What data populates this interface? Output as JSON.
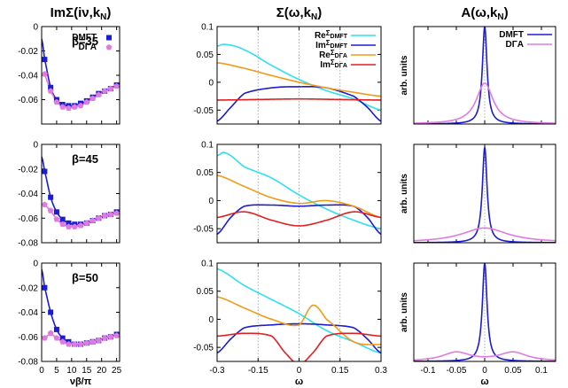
{
  "figure": {
    "col_titles": [
      "ImΣ(iν,kN)",
      "Σ(ω,kN)",
      "A(ω,kN)"
    ],
    "xlabels": [
      "νβ/π",
      "ω",
      "ω"
    ],
    "ylabel_right": "arb. units"
  },
  "chart_data": [
    {
      "panel": "row1-col1",
      "type": "line",
      "annotation": "β=35",
      "xlim": [
        0,
        26
      ],
      "ylim": [
        -0.08,
        0
      ],
      "xticks": [
        0,
        5,
        10,
        15,
        20,
        25
      ],
      "show_xticks": false,
      "yticks": [
        0,
        -0.02,
        -0.04,
        -0.06,
        -0.08
      ],
      "ytick_labels": [
        "0",
        "-0.02",
        "-0.04",
        "-0.06",
        ""
      ],
      "legend": "top-right",
      "series": [
        {
          "name": "DMFT",
          "color": "#1c1cd0",
          "marker": "square",
          "x": [
            1,
            3,
            5,
            7,
            9,
            11,
            13,
            15,
            17,
            19,
            21,
            23,
            25
          ],
          "y": [
            -0.027,
            -0.05,
            -0.06,
            -0.064,
            -0.065,
            -0.065,
            -0.063,
            -0.061,
            -0.058,
            -0.055,
            -0.053,
            -0.051,
            -0.048
          ],
          "curve_x": [
            0,
            1,
            3,
            5,
            7,
            9,
            11,
            13,
            15,
            17,
            19,
            21,
            23,
            25,
            26
          ],
          "curve_y": [
            -0.01,
            -0.027,
            -0.05,
            -0.06,
            -0.064,
            -0.065,
            -0.065,
            -0.063,
            -0.061,
            -0.058,
            -0.055,
            -0.053,
            -0.051,
            -0.048,
            -0.047
          ]
        },
        {
          "name": "DΓA",
          "color": "#e07ae0",
          "marker": "pentagon",
          "x": [
            1,
            3,
            5,
            7,
            9,
            11,
            13,
            15,
            17,
            19,
            21,
            23,
            25
          ],
          "y": [
            -0.039,
            -0.053,
            -0.062,
            -0.066,
            -0.067,
            -0.066,
            -0.065,
            -0.062,
            -0.059,
            -0.056,
            -0.053,
            -0.051,
            -0.049
          ]
        }
      ]
    },
    {
      "panel": "row2-col1",
      "type": "line",
      "annotation": "β=45",
      "xlim": [
        0,
        26
      ],
      "ylim": [
        -0.08,
        0
      ],
      "xticks": [
        0,
        5,
        10,
        15,
        20,
        25
      ],
      "show_xticks": false,
      "yticks": [
        0,
        -0.02,
        -0.04,
        -0.06,
        -0.08
      ],
      "ytick_labels": [
        "0",
        "-0.02",
        "-0.04",
        "-0.06",
        "-0.08"
      ],
      "series": [
        {
          "name": "DMFT",
          "color": "#1c1cd0",
          "marker": "square",
          "x": [
            1,
            3,
            5,
            7,
            9,
            11,
            13,
            15,
            17,
            19,
            21,
            23,
            25
          ],
          "y": [
            -0.022,
            -0.043,
            -0.055,
            -0.061,
            -0.064,
            -0.065,
            -0.065,
            -0.064,
            -0.062,
            -0.06,
            -0.058,
            -0.057,
            -0.055
          ],
          "curve_x": [
            0,
            1,
            3,
            5,
            7,
            9,
            11,
            13,
            15,
            17,
            19,
            21,
            23,
            25,
            26
          ],
          "curve_y": [
            -0.01,
            -0.022,
            -0.043,
            -0.055,
            -0.061,
            -0.064,
            -0.065,
            -0.065,
            -0.064,
            -0.062,
            -0.06,
            -0.058,
            -0.057,
            -0.055,
            -0.054
          ]
        },
        {
          "name": "DΓA",
          "color": "#e07ae0",
          "marker": "pentagon",
          "x": [
            1,
            3,
            5,
            7,
            9,
            11,
            13,
            15,
            17,
            19,
            21,
            23,
            25
          ],
          "y": [
            -0.049,
            -0.054,
            -0.061,
            -0.065,
            -0.067,
            -0.067,
            -0.066,
            -0.064,
            -0.062,
            -0.06,
            -0.058,
            -0.057,
            -0.056
          ]
        }
      ]
    },
    {
      "panel": "row3-col1",
      "type": "line",
      "annotation": "β=50",
      "xlim": [
        0,
        26
      ],
      "ylim": [
        -0.08,
        0
      ],
      "xticks": [
        0,
        5,
        10,
        15,
        20,
        25
      ],
      "show_xticks": true,
      "yticks": [
        0,
        -0.02,
        -0.04,
        -0.06,
        -0.08
      ],
      "ytick_labels": [
        "0",
        "-0.02",
        "-0.04",
        "-0.06",
        "-0.08"
      ],
      "series": [
        {
          "name": "DMFT",
          "color": "#1c1cd0",
          "marker": "square",
          "x": [
            1,
            3,
            5,
            7,
            9,
            11,
            13,
            15,
            17,
            19,
            21,
            23,
            25
          ],
          "y": [
            -0.02,
            -0.04,
            -0.054,
            -0.061,
            -0.064,
            -0.066,
            -0.066,
            -0.065,
            -0.064,
            -0.063,
            -0.061,
            -0.06,
            -0.058
          ],
          "curve_x": [
            0,
            1,
            3,
            5,
            7,
            9,
            11,
            13,
            15,
            17,
            19,
            21,
            23,
            25,
            26
          ],
          "curve_y": [
            -0.005,
            -0.02,
            -0.04,
            -0.054,
            -0.061,
            -0.064,
            -0.066,
            -0.066,
            -0.065,
            -0.064,
            -0.063,
            -0.061,
            -0.06,
            -0.058,
            -0.057
          ]
        },
        {
          "name": "DΓA",
          "color": "#e07ae0",
          "marker": "pentagon",
          "x": [
            1,
            3,
            5,
            7,
            9,
            11,
            13,
            15,
            17,
            19,
            21,
            23,
            25
          ],
          "y": [
            -0.061,
            -0.057,
            -0.061,
            -0.064,
            -0.066,
            -0.066,
            -0.066,
            -0.065,
            -0.064,
            -0.063,
            -0.061,
            -0.06,
            -0.059
          ]
        }
      ]
    },
    {
      "panel": "row1-col2",
      "type": "line",
      "xlim": [
        -0.3,
        0.3
      ],
      "ylim": [
        -0.075,
        0.1
      ],
      "xticks": [
        -0.3,
        -0.15,
        0,
        0.15,
        0.3
      ],
      "show_xticks": false,
      "yticks": [
        0.1,
        0.05,
        0,
        -0.05
      ],
      "ytick_labels": [
        "0.1",
        "0.05",
        "0",
        "-0.05"
      ],
      "grid_x": [
        -0.15,
        0,
        0.15
      ],
      "legend": "top-right",
      "series": [
        {
          "name": "ReΣDMFT",
          "legend_label": [
            "Re",
            "Σ",
            "DMFT"
          ],
          "color": "#2ee0f0",
          "x": [
            -0.3,
            -0.27,
            -0.2,
            -0.1,
            0,
            0.1,
            0.2,
            0.3
          ],
          "y": [
            0.065,
            0.068,
            0.058,
            0.03,
            0.005,
            -0.015,
            -0.03,
            -0.05
          ]
        },
        {
          "name": "ImΣDMFT",
          "legend_label": [
            "Im",
            "Σ",
            "DMFT"
          ],
          "color": "#1c1cd0",
          "x": [
            -0.3,
            -0.25,
            -0.2,
            -0.1,
            0,
            0.1,
            0.2,
            0.25,
            0.3
          ],
          "y": [
            -0.07,
            -0.045,
            -0.02,
            -0.01,
            -0.008,
            -0.01,
            -0.025,
            -0.045,
            -0.07
          ]
        },
        {
          "name": "ReΣDΓA",
          "legend_label": [
            "Re",
            "Σ",
            "DΓA"
          ],
          "color": "#f29a1a",
          "x": [
            -0.3,
            -0.2,
            -0.1,
            0,
            0.1,
            0.2,
            0.3
          ],
          "y": [
            0.035,
            0.025,
            0.012,
            0.0,
            -0.01,
            -0.018,
            -0.025
          ]
        },
        {
          "name": "ImΣDΓA",
          "legend_label": [
            "Im",
            "Σ",
            "DΓA"
          ],
          "color": "#e02020",
          "x": [
            -0.3,
            -0.15,
            0,
            0.15,
            0.3
          ],
          "y": [
            -0.032,
            -0.031,
            -0.03,
            -0.031,
            -0.032
          ]
        }
      ]
    },
    {
      "panel": "row2-col2",
      "type": "line",
      "xlim": [
        -0.3,
        0.3
      ],
      "ylim": [
        -0.075,
        0.1
      ],
      "xticks": [
        -0.3,
        -0.15,
        0,
        0.15,
        0.3
      ],
      "show_xticks": false,
      "yticks": [
        0.1,
        0.05,
        0,
        -0.05
      ],
      "ytick_labels": [
        "0.1",
        "0.05",
        "0",
        "-0.05"
      ],
      "grid_x": [
        -0.15,
        0,
        0.15
      ],
      "series": [
        {
          "name": "ReΣDMFT",
          "color": "#2ee0f0",
          "x": [
            -0.3,
            -0.27,
            -0.2,
            -0.1,
            0,
            0.1,
            0.2,
            0.3
          ],
          "y": [
            0.08,
            0.085,
            0.06,
            0.04,
            0.01,
            -0.015,
            -0.035,
            -0.05
          ]
        },
        {
          "name": "ImΣDMFT",
          "color": "#1c1cd0",
          "x": [
            -0.3,
            -0.25,
            -0.2,
            -0.1,
            0,
            0.1,
            0.2,
            0.25,
            0.3
          ],
          "y": [
            -0.06,
            -0.03,
            -0.01,
            -0.008,
            -0.01,
            -0.008,
            -0.01,
            -0.03,
            -0.06
          ]
        },
        {
          "name": "ReΣDΓA",
          "color": "#f29a1a",
          "x": [
            -0.3,
            -0.2,
            -0.1,
            0,
            0.1,
            0.2,
            0.3
          ],
          "y": [
            0.045,
            0.025,
            0.005,
            -0.005,
            0.0,
            -0.01,
            -0.03
          ]
        },
        {
          "name": "ImΣDΓA",
          "color": "#e02020",
          "x": [
            -0.3,
            -0.2,
            -0.1,
            0,
            0.1,
            0.2,
            0.3
          ],
          "y": [
            -0.03,
            -0.02,
            -0.035,
            -0.045,
            -0.035,
            -0.02,
            -0.03
          ]
        }
      ]
    },
    {
      "panel": "row3-col2",
      "type": "line",
      "xlim": [
        -0.3,
        0.3
      ],
      "ylim": [
        -0.075,
        0.1
      ],
      "xticks": [
        -0.3,
        -0.15,
        0,
        0.15,
        0.3
      ],
      "show_xticks": true,
      "yticks": [
        0.1,
        0.05,
        0,
        -0.05
      ],
      "ytick_labels": [
        "0.1",
        "0.05",
        "0",
        "-0.05"
      ],
      "grid_x": [
        -0.15,
        0,
        0.15
      ],
      "series": [
        {
          "name": "ReΣDMFT",
          "color": "#2ee0f0",
          "x": [
            -0.3,
            -0.2,
            -0.1,
            0,
            0.1,
            0.2,
            0.3
          ],
          "y": [
            0.09,
            0.06,
            0.035,
            0.01,
            -0.02,
            -0.04,
            -0.06
          ]
        },
        {
          "name": "ImΣDMFT",
          "color": "#1c1cd0",
          "x": [
            -0.3,
            -0.25,
            -0.2,
            -0.1,
            0,
            0.1,
            0.2,
            0.25,
            0.3
          ],
          "y": [
            -0.06,
            -0.035,
            -0.015,
            -0.01,
            -0.008,
            -0.01,
            -0.015,
            -0.035,
            -0.06
          ]
        },
        {
          "name": "ReΣDΓA",
          "color": "#f29a1a",
          "x": [
            -0.3,
            -0.2,
            -0.1,
            0,
            0.05,
            0.1,
            0.2,
            0.3
          ],
          "y": [
            0.04,
            0.02,
            0.0,
            -0.01,
            0.025,
            0.0,
            -0.04,
            -0.045
          ]
        },
        {
          "name": "ImΣDΓA",
          "color": "#e02020",
          "x": [
            -0.3,
            -0.2,
            -0.1,
            -0.05,
            0,
            0.05,
            0.1,
            0.2,
            0.3
          ],
          "y": [
            -0.03,
            -0.025,
            -0.03,
            -0.06,
            -0.08,
            -0.06,
            -0.03,
            -0.025,
            -0.03
          ]
        }
      ]
    },
    {
      "panel": "row1-col3",
      "type": "line",
      "ylabel": "arb. units",
      "xlim": [
        -0.125,
        0.125
      ],
      "ylim": [
        0,
        1.0
      ],
      "xticks": [
        -0.1,
        -0.05,
        0,
        0.05,
        0.1
      ],
      "show_xticks": false,
      "grid_x": [
        0
      ],
      "legend": "top-right",
      "series": [
        {
          "name": "DMFT",
          "color": "#1c1cd0",
          "center": 0.0,
          "width": 0.005,
          "height": 1.0
        },
        {
          "name": "DΓA",
          "color": "#e07ae0",
          "center": 0.0,
          "width": 0.018,
          "height": 0.42
        }
      ]
    },
    {
      "panel": "row2-col3",
      "type": "line",
      "ylabel": "arb. units",
      "xlim": [
        -0.125,
        0.125
      ],
      "ylim": [
        0,
        1.0
      ],
      "xticks": [
        -0.1,
        -0.05,
        0,
        0.05,
        0.1
      ],
      "show_xticks": false,
      "grid_x": [
        0
      ],
      "series": [
        {
          "name": "DMFT",
          "color": "#1c1cd0",
          "center": 0.0,
          "width": 0.005,
          "height": 0.97
        },
        {
          "name": "DΓA",
          "color": "#e07ae0",
          "center": 0.0,
          "width": 0.05,
          "height": 0.15
        }
      ]
    },
    {
      "panel": "row3-col3",
      "type": "line",
      "ylabel": "arb. units",
      "xlim": [
        -0.125,
        0.125
      ],
      "ylim": [
        0,
        1.0
      ],
      "xticks": [
        -0.1,
        -0.05,
        0,
        0.05,
        0.1
      ],
      "show_xticks": true,
      "grid_x": [
        0
      ],
      "series": [
        {
          "name": "DMFT",
          "color": "#1c1cd0",
          "center": 0.0,
          "width": 0.005,
          "height": 1.0
        },
        {
          "name": "DΓA",
          "color": "#e07ae0",
          "centers": [
            -0.05,
            0.05
          ],
          "width": 0.03,
          "height": 0.09
        }
      ]
    }
  ]
}
